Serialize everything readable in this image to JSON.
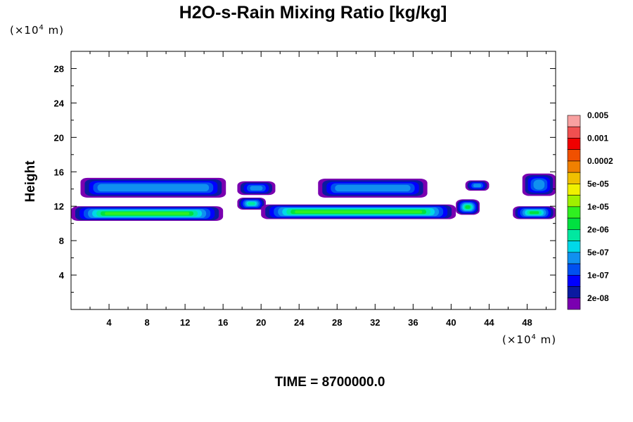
{
  "chart_data": {
    "type": "heatmap",
    "title": "H2O-s-Rain Mixing Ratio [kg/kg]",
    "ylabel": "Height",
    "xlabel": "",
    "x_unit": "(×10",
    "x_unit_exp": "4",
    "x_unit_tail": " m)",
    "y_unit": "(×10",
    "y_unit_exp": "4",
    "y_unit_tail": " m)",
    "time_label": "TIME = 8700000.0",
    "xlim": [
      0,
      51
    ],
    "ylim": [
      0,
      30
    ],
    "x_ticks": [
      4,
      8,
      12,
      16,
      20,
      24,
      28,
      32,
      36,
      40,
      44,
      48
    ],
    "y_ticks": [
      4,
      8,
      12,
      16,
      20,
      24,
      28
    ],
    "legend": {
      "colors": [
        "#7a00b0",
        "#0a1aa0",
        "#0000ff",
        "#0050f0",
        "#1090f0",
        "#00d8e8",
        "#00e8a0",
        "#00e040",
        "#30f020",
        "#a0f000",
        "#f0f000",
        "#f0c000",
        "#f08000",
        "#f05000",
        "#f00000",
        "#f05050",
        "#f8a0a0"
      ],
      "labels": [
        "2e-08",
        "1e-07",
        "5e-07",
        "2e-06",
        "1e-05",
        "5e-05",
        "0.0002",
        "0.001",
        "0.005"
      ]
    },
    "regions": [
      {
        "x0": 1.0,
        "x1": 16.3,
        "y0": 13.0,
        "y1": 15.3,
        "level": 4
      },
      {
        "x0": 17.5,
        "x1": 21.5,
        "y0": 13.3,
        "y1": 14.9,
        "level": 4
      },
      {
        "x0": 26.0,
        "x1": 37.5,
        "y0": 13.0,
        "y1": 15.2,
        "level": 4
      },
      {
        "x0": 41.5,
        "x1": 44.0,
        "y0": 13.8,
        "y1": 15.0,
        "level": 4
      },
      {
        "x0": 47.5,
        "x1": 51.0,
        "y0": 13.2,
        "y1": 15.8,
        "level": 4
      },
      {
        "x0": 0.0,
        "x1": 16.0,
        "y0": 10.3,
        "y1": 12.0,
        "level": 8
      },
      {
        "x0": 17.5,
        "x1": 20.5,
        "y0": 11.6,
        "y1": 13.0,
        "level": 6
      },
      {
        "x0": 20.0,
        "x1": 40.5,
        "y0": 10.5,
        "y1": 12.2,
        "level": 8
      },
      {
        "x0": 40.5,
        "x1": 43.0,
        "y0": 11.0,
        "y1": 12.8,
        "level": 7
      },
      {
        "x0": 46.5,
        "x1": 51.0,
        "y0": 10.5,
        "y1": 12.0,
        "level": 7
      }
    ]
  }
}
